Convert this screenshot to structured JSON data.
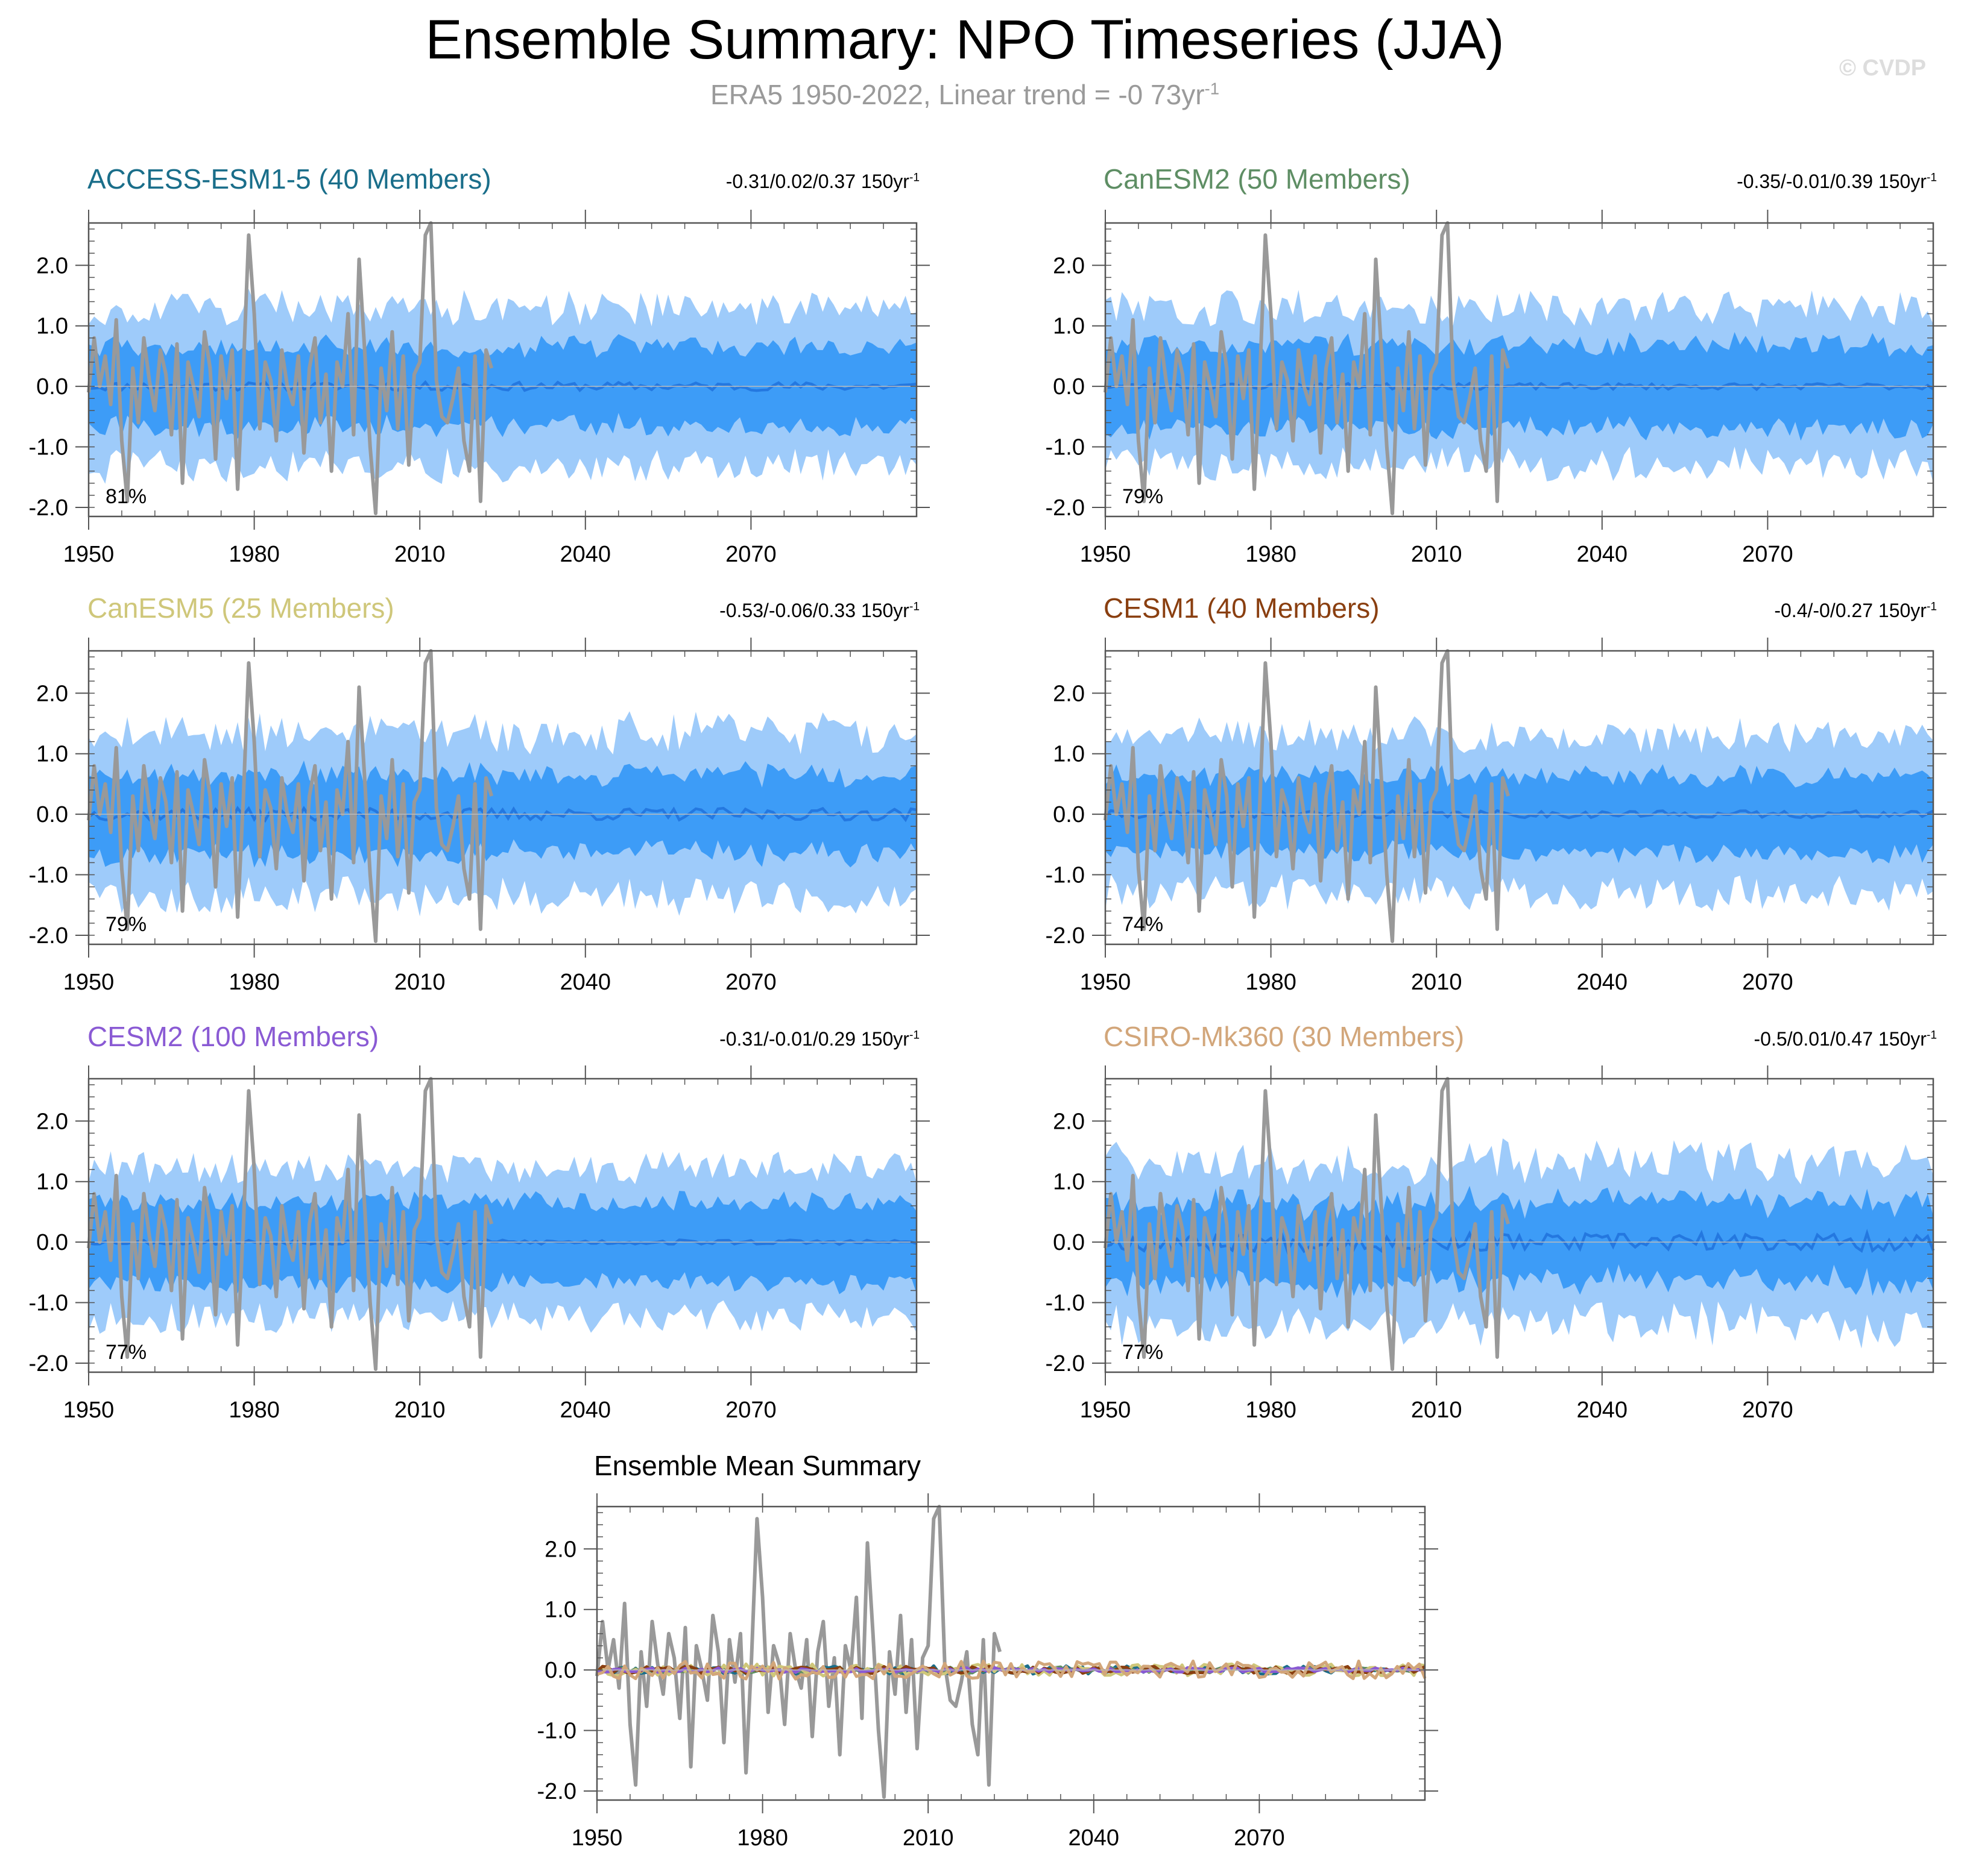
{
  "header": {
    "title": "Ensemble Summary: NPO Timeseries (JJA)",
    "subtitle_prefix": "ERA5 1950-2022, Linear trend = -0 73yr",
    "subtitle_sup": "-1",
    "copyright": "© CVDP"
  },
  "colors": {
    "outer_band": "#9ecbfa",
    "inner_band": "#3d9cf7",
    "ensemble_mean": "#2478e0",
    "observed": "#999999"
  },
  "chart_data": {
    "type": "line",
    "x_range": [
      1950,
      2100
    ],
    "ylim": [
      -2.15,
      2.7
    ],
    "x_ticks": [
      1950,
      1980,
      2010,
      2040,
      2070
    ],
    "x_tick_labels": [
      "1950",
      "1980",
      "2010",
      "2040",
      "2070"
    ],
    "y_ticks": [
      -2,
      -1,
      0,
      1,
      2
    ],
    "y_tick_labels": [
      "-2.0",
      "-1.0",
      "0.0",
      "1.0",
      "2.0"
    ],
    "observed": {
      "name": "ERA5",
      "x_start": 1950,
      "values": [
        -0.1,
        0.8,
        0.0,
        0.5,
        -0.3,
        1.1,
        -0.9,
        -1.9,
        0.3,
        -0.6,
        0.8,
        0.1,
        -0.4,
        0.6,
        0.2,
        -0.8,
        0.7,
        -1.6,
        0.4,
        0.0,
        -0.5,
        0.9,
        0.3,
        -1.2,
        0.5,
        -0.2,
        0.6,
        -1.7,
        0.2,
        2.5,
        1.2,
        -0.7,
        0.4,
        0.1,
        -0.9,
        0.6,
        0.0,
        -0.3,
        0.5,
        -1.1,
        0.3,
        0.8,
        -0.6,
        0.2,
        -1.4,
        0.4,
        0.0,
        1.2,
        -0.8,
        2.1,
        0.6,
        -1.0,
        -2.1,
        0.3,
        -0.4,
        0.9,
        -0.7,
        0.5,
        -1.3,
        0.2,
        0.4,
        2.5,
        2.7,
        0.1,
        -0.5,
        -0.6,
        -0.2,
        0.3,
        -0.9,
        -1.4,
        0.5,
        -1.9,
        0.6,
        0.3
      ]
    },
    "panels": [
      {
        "title": "ACCESS-ESM1-5 (40 Members)",
        "color": "#1a6e8a",
        "trend": "-0.31/0.02/0.37 150yr",
        "percent": "81%",
        "mean_amp": 0.07,
        "inner_width": 0.62,
        "outer_width": 1.2,
        "seed": 11
      },
      {
        "title": "CanESM2 (50 Members)",
        "color": "#5e8e64",
        "trend": "-0.35/-0.01/0.39 150yr",
        "percent": "79%",
        "mean_amp": 0.05,
        "inner_width": 0.66,
        "outer_width": 1.2,
        "seed": 23
      },
      {
        "title": "CanESM5 (25 Members)",
        "color": "#cfc77a",
        "trend": "-0.53/-0.06/0.33 150yr",
        "percent": "79%",
        "mean_amp": 0.1,
        "inner_width": 0.62,
        "outer_width": 1.25,
        "seed": 37
      },
      {
        "title": "CESM1 (40 Members)",
        "color": "#8a3f10",
        "trend": "-0.4/-0/0.27 150yr",
        "percent": "74%",
        "mean_amp": 0.06,
        "inner_width": 0.6,
        "outer_width": 1.2,
        "seed": 41
      },
      {
        "title": "CESM2 (100 Members)",
        "color": "#8a5ad4",
        "trend": "-0.31/-0.01/0.29 150yr",
        "percent": "77%",
        "mean_amp": 0.04,
        "inner_width": 0.64,
        "outer_width": 1.15,
        "seed": 53
      },
      {
        "title": "CSIRO-Mk360 (30 Members)",
        "color": "#d2a67a",
        "trend": "-0.5/0.01/0.47 150yr",
        "percent": "77%",
        "mean_amp": 0.15,
        "inner_width": 0.62,
        "outer_width": 1.25,
        "seed": 67
      }
    ],
    "summary": {
      "title": "Ensemble Mean Summary",
      "series_colors": [
        "#1a6e8a",
        "#5e8e64",
        "#cfc77a",
        "#8a3f10",
        "#8a5ad4",
        "#d2a67a"
      ]
    }
  }
}
